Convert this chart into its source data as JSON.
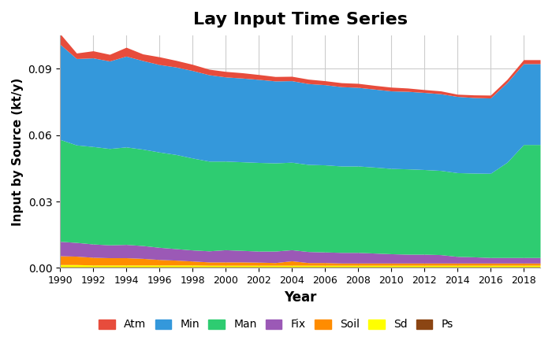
{
  "title": "Lay Input Time Series",
  "xlabel": "Year",
  "ylabel": "Input by Source (kt/y)",
  "years": [
    1990,
    1991,
    1992,
    1993,
    1994,
    1995,
    1996,
    1997,
    1998,
    1999,
    2000,
    2001,
    2002,
    2003,
    2004,
    2005,
    2006,
    2007,
    2008,
    2009,
    2010,
    2011,
    2012,
    2013,
    2014,
    2015,
    2016,
    2017,
    2018,
    2019
  ],
  "Ps": [
    0.0005,
    0.0005,
    0.0005,
    0.0005,
    0.0005,
    0.0005,
    0.0005,
    0.0005,
    0.0005,
    0.0005,
    0.0005,
    0.0005,
    0.0005,
    0.0005,
    0.0005,
    0.0005,
    0.0005,
    0.0005,
    0.0005,
    0.0005,
    0.0005,
    0.0005,
    0.0005,
    0.0005,
    0.0005,
    0.0005,
    0.0005,
    0.0005,
    0.0005,
    0.0005
  ],
  "Sd": [
    0.001,
    0.001,
    0.0008,
    0.0008,
    0.0008,
    0.0008,
    0.0008,
    0.0008,
    0.0008,
    0.0007,
    0.0007,
    0.0007,
    0.0007,
    0.0007,
    0.0007,
    0.0007,
    0.0007,
    0.0007,
    0.0007,
    0.0007,
    0.0007,
    0.0007,
    0.0007,
    0.0007,
    0.0007,
    0.0007,
    0.0007,
    0.0007,
    0.0007,
    0.0007
  ],
  "Soil": [
    0.004,
    0.0038,
    0.0035,
    0.0033,
    0.0033,
    0.003,
    0.0025,
    0.0022,
    0.0018,
    0.0015,
    0.0015,
    0.0015,
    0.0014,
    0.0012,
    0.002,
    0.0012,
    0.0012,
    0.001,
    0.001,
    0.001,
    0.001,
    0.001,
    0.001,
    0.001,
    0.001,
    0.001,
    0.001,
    0.001,
    0.001,
    0.001
  ],
  "Fix": [
    0.0065,
    0.0062,
    0.006,
    0.0058,
    0.006,
    0.0058,
    0.0055,
    0.0052,
    0.005,
    0.005,
    0.0055,
    0.0052,
    0.005,
    0.0052,
    0.005,
    0.005,
    0.0048,
    0.0048,
    0.0048,
    0.0045,
    0.0042,
    0.004,
    0.004,
    0.0038,
    0.003,
    0.0028,
    0.0025,
    0.0025,
    0.0025,
    0.0025
  ],
  "Man": [
    0.046,
    0.044,
    0.044,
    0.0435,
    0.044,
    0.0435,
    0.043,
    0.0425,
    0.0415,
    0.0405,
    0.04,
    0.04,
    0.04,
    0.0398,
    0.0395,
    0.0393,
    0.0393,
    0.039,
    0.039,
    0.0388,
    0.0385,
    0.0385,
    0.0382,
    0.038,
    0.0378,
    0.0378,
    0.038,
    0.043,
    0.051,
    0.051
  ],
  "Min": [
    0.043,
    0.039,
    0.04,
    0.0395,
    0.041,
    0.04,
    0.0395,
    0.0395,
    0.0395,
    0.039,
    0.038,
    0.0378,
    0.0375,
    0.037,
    0.0368,
    0.0365,
    0.0362,
    0.0358,
    0.0355,
    0.0352,
    0.035,
    0.035,
    0.0348,
    0.0346,
    0.0344,
    0.0341,
    0.034,
    0.036,
    0.0365,
    0.0365
  ],
  "Atm": [
    0.0048,
    0.0025,
    0.0032,
    0.003,
    0.004,
    0.003,
    0.0035,
    0.003,
    0.0028,
    0.0025,
    0.0025,
    0.0024,
    0.0022,
    0.002,
    0.002,
    0.002,
    0.0018,
    0.0018,
    0.0018,
    0.0017,
    0.0017,
    0.0015,
    0.0013,
    0.0013,
    0.001,
    0.0012,
    0.0013,
    0.0014,
    0.0018,
    0.0018
  ],
  "colors": {
    "Ps": "#8B4513",
    "Sd": "#FFFF00",
    "Soil": "#FF8C00",
    "Fix": "#9B59B6",
    "Man": "#2ECC71",
    "Min": "#3498DB",
    "Atm": "#E74C3C"
  },
  "ylim": [
    0,
    0.105
  ],
  "yticks": [
    0.0,
    0.03,
    0.06,
    0.09
  ],
  "bg_color": "#FFFFFF",
  "grid_color": "#CCCCCC"
}
